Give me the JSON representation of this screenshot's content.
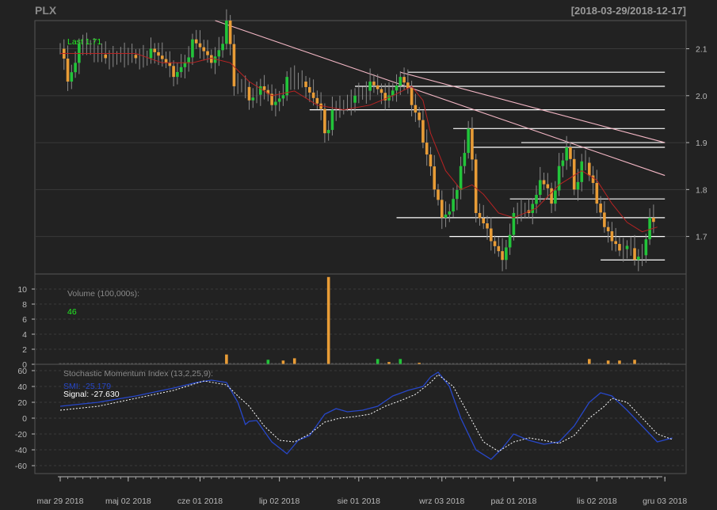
{
  "header": {
    "symbol": "PLX",
    "range": "[2018-03-29/2018-12-17]"
  },
  "colors": {
    "up": "#22c43a",
    "down": "#e89c36",
    "sma": "#b82323",
    "trend": "#f5b8c6",
    "level": "#ffffff",
    "smi": "#2747c9",
    "signal": "#ffffff",
    "grid": "#3a3a3a",
    "panel_border": "#555555",
    "last_text": "#22ee22"
  },
  "chart_data": [
    {
      "type": "candlestick",
      "panel": "price",
      "last_label": "Last 1.71",
      "ylim": [
        1.62,
        2.16
      ],
      "yticks": [
        1.7,
        1.8,
        1.9,
        2.0,
        2.1
      ],
      "x": {
        "start": "2018-03-29",
        "end": "2018-12-17",
        "ticks": [
          "mar 29 2018",
          "maj 02 2018",
          "cze 01 2018",
          "lip 02 2018",
          "sie 01 2018",
          "wrz 03 2018",
          "paź 01 2018",
          "lis 02 2018",
          "gru 03 2018"
        ]
      },
      "segments": [
        [
          0,
          2.1,
          2.1
        ],
        [
          2,
          2.1,
          2.03
        ],
        [
          5,
          2.06,
          2.11
        ],
        [
          12,
          2.09,
          2.08
        ],
        [
          20,
          2.1,
          2.08
        ],
        [
          24,
          2.05,
          2.1
        ],
        [
          30,
          2.08,
          2.04
        ],
        [
          35,
          2.05,
          2.12
        ],
        [
          40,
          2.09,
          2.07
        ],
        [
          44,
          2.07,
          2.16
        ],
        [
          46,
          2.12,
          2.02
        ],
        [
          50,
          2.06,
          1.99
        ],
        [
          53,
          1.99,
          2.02
        ],
        [
          56,
          2.02,
          1.98
        ],
        [
          60,
          1.96,
          2.04
        ],
        [
          64,
          2.02,
          2.03
        ],
        [
          70,
          2.02,
          1.92
        ],
        [
          72,
          1.88,
          1.97
        ],
        [
          78,
          1.97,
          2.0
        ],
        [
          82,
          1.99,
          2.03
        ],
        [
          86,
          2.01,
          1.99
        ],
        [
          90,
          2.02,
          2.04
        ],
        [
          93,
          2.04,
          1.98
        ],
        [
          96,
          1.98,
          1.9
        ],
        [
          99,
          1.86,
          1.8
        ],
        [
          101,
          1.78,
          1.74
        ],
        [
          104,
          1.73,
          1.78
        ],
        [
          106,
          1.77,
          1.85
        ],
        [
          108,
          1.87,
          1.93
        ],
        [
          110,
          1.87,
          1.75
        ],
        [
          114,
          1.73,
          1.69
        ],
        [
          117,
          1.67,
          1.65
        ],
        [
          120,
          1.7,
          1.75
        ],
        [
          124,
          1.77,
          1.75
        ],
        [
          127,
          1.79,
          1.82
        ],
        [
          130,
          1.83,
          1.77
        ],
        [
          132,
          1.79,
          1.85
        ],
        [
          134,
          1.85,
          1.89
        ],
        [
          136,
          1.9,
          1.8
        ],
        [
          138,
          1.79,
          1.86
        ],
        [
          140,
          1.89,
          1.83
        ],
        [
          142,
          1.84,
          1.77
        ],
        [
          144,
          1.75,
          1.72
        ],
        [
          146,
          1.72,
          1.69
        ],
        [
          148,
          1.69,
          1.67
        ],
        [
          150,
          1.67,
          1.68
        ],
        [
          152,
          1.7,
          1.65
        ],
        [
          154,
          1.67,
          1.66
        ],
        [
          156,
          1.71,
          1.74
        ],
        [
          158,
          1.74,
          1.71
        ]
      ],
      "sma": {
        "segments": [
          [
            0,
            2.09
          ],
          [
            10,
            2.09
          ],
          [
            20,
            2.09
          ],
          [
            27,
            2.07
          ],
          [
            35,
            2.07
          ],
          [
            40,
            2.08
          ],
          [
            45,
            2.07
          ],
          [
            50,
            2.03
          ],
          [
            56,
            2.0
          ],
          [
            62,
            2.01
          ],
          [
            68,
            1.98
          ],
          [
            75,
            1.97
          ],
          [
            82,
            1.98
          ],
          [
            88,
            2.0
          ],
          [
            93,
            2.02
          ],
          [
            96,
            1.99
          ],
          [
            98,
            1.92
          ],
          [
            102,
            1.84
          ],
          [
            106,
            1.8
          ],
          [
            109,
            1.81
          ],
          [
            112,
            1.79
          ],
          [
            116,
            1.75
          ],
          [
            120,
            1.74
          ],
          [
            126,
            1.76
          ],
          [
            132,
            1.81
          ],
          [
            138,
            1.84
          ],
          [
            142,
            1.82
          ],
          [
            146,
            1.77
          ],
          [
            150,
            1.73
          ],
          [
            154,
            1.71
          ],
          [
            158,
            1.72
          ]
        ]
      },
      "trendlines": [
        [
          [
            41,
            2.16
          ],
          [
            160,
            1.83
          ]
        ],
        [
          [
            90,
            2.05
          ],
          [
            160,
            1.9
          ]
        ]
      ],
      "levels": [
        [
          92,
          160,
          2.05
        ],
        [
          78,
          160,
          2.02
        ],
        [
          66,
          160,
          1.97
        ],
        [
          104,
          160,
          1.93
        ],
        [
          109,
          160,
          1.89
        ],
        [
          122,
          160,
          1.9
        ],
        [
          119,
          160,
          1.78
        ],
        [
          89,
          160,
          1.74
        ],
        [
          103,
          160,
          1.7
        ],
        [
          143,
          160,
          1.65
        ]
      ]
    },
    {
      "type": "bar",
      "panel": "volume",
      "title": "Volume (100,000s):",
      "last_label": "46",
      "ylim": [
        0,
        12
      ],
      "yticks": [
        0,
        2,
        4,
        6,
        8,
        10
      ],
      "bars": [
        [
          44,
          1.3,
          "down"
        ],
        [
          55,
          0.6,
          "up"
        ],
        [
          59,
          0.5,
          "down"
        ],
        [
          62,
          0.8,
          "down"
        ],
        [
          71,
          11.6,
          "down"
        ],
        [
          84,
          0.7,
          "up"
        ],
        [
          87,
          0.3,
          "down"
        ],
        [
          90,
          0.7,
          "up"
        ],
        [
          95,
          0.2,
          "down"
        ],
        [
          140,
          0.7,
          "down"
        ],
        [
          145,
          0.5,
          "down"
        ],
        [
          148,
          0.5,
          "down"
        ],
        [
          152,
          0.6,
          "down"
        ]
      ]
    },
    {
      "type": "line",
      "panel": "smi",
      "title": "Stochastic Momentum Index (13,2,25,9):",
      "ylim": [
        -70,
        68
      ],
      "yticks": [
        -60,
        -40,
        -20,
        0,
        20,
        40,
        60
      ],
      "series": [
        {
          "name": "SMI",
          "label": "SMI: -25.179",
          "values": [
            [
              0,
              15
            ],
            [
              10,
              20
            ],
            [
              20,
              28
            ],
            [
              30,
              38
            ],
            [
              36,
              45
            ],
            [
              40,
              48
            ],
            [
              44,
              45
            ],
            [
              47,
              20
            ],
            [
              49,
              -8
            ],
            [
              50,
              -4
            ],
            [
              52,
              -3
            ],
            [
              56,
              -30
            ],
            [
              60,
              -45
            ],
            [
              63,
              -28
            ],
            [
              66,
              -22
            ],
            [
              70,
              5
            ],
            [
              73,
              12
            ],
            [
              76,
              8
            ],
            [
              80,
              10
            ],
            [
              84,
              15
            ],
            [
              88,
              28
            ],
            [
              92,
              35
            ],
            [
              96,
              40
            ],
            [
              98,
              52
            ],
            [
              100,
              58
            ],
            [
              103,
              40
            ],
            [
              106,
              0
            ],
            [
              110,
              -40
            ],
            [
              114,
              -52
            ],
            [
              117,
              -38
            ],
            [
              120,
              -20
            ],
            [
              124,
              -28
            ],
            [
              128,
              -33
            ],
            [
              132,
              -30
            ],
            [
              136,
              -10
            ],
            [
              140,
              20
            ],
            [
              143,
              32
            ],
            [
              146,
              28
            ],
            [
              150,
              10
            ],
            [
              154,
              -10
            ],
            [
              158,
              -30
            ],
            [
              162,
              -25
            ]
          ]
        },
        {
          "name": "Signal",
          "label": "Signal: -27.630",
          "values": [
            [
              0,
              10
            ],
            [
              10,
              15
            ],
            [
              20,
              25
            ],
            [
              30,
              35
            ],
            [
              38,
              47
            ],
            [
              44,
              42
            ],
            [
              47,
              28
            ],
            [
              50,
              15
            ],
            [
              54,
              -10
            ],
            [
              58,
              -28
            ],
            [
              62,
              -30
            ],
            [
              66,
              -20
            ],
            [
              70,
              -5
            ],
            [
              74,
              0
            ],
            [
              78,
              2
            ],
            [
              82,
              5
            ],
            [
              86,
              15
            ],
            [
              90,
              22
            ],
            [
              94,
              30
            ],
            [
              98,
              45
            ],
            [
              100,
              55
            ],
            [
              104,
              40
            ],
            [
              108,
              5
            ],
            [
              112,
              -30
            ],
            [
              116,
              -42
            ],
            [
              120,
              -30
            ],
            [
              124,
              -25
            ],
            [
              128,
              -28
            ],
            [
              132,
              -32
            ],
            [
              136,
              -22
            ],
            [
              140,
              0
            ],
            [
              144,
              15
            ],
            [
              146,
              25
            ],
            [
              150,
              20
            ],
            [
              154,
              0
            ],
            [
              158,
              -20
            ],
            [
              162,
              -27
            ]
          ]
        }
      ]
    }
  ]
}
